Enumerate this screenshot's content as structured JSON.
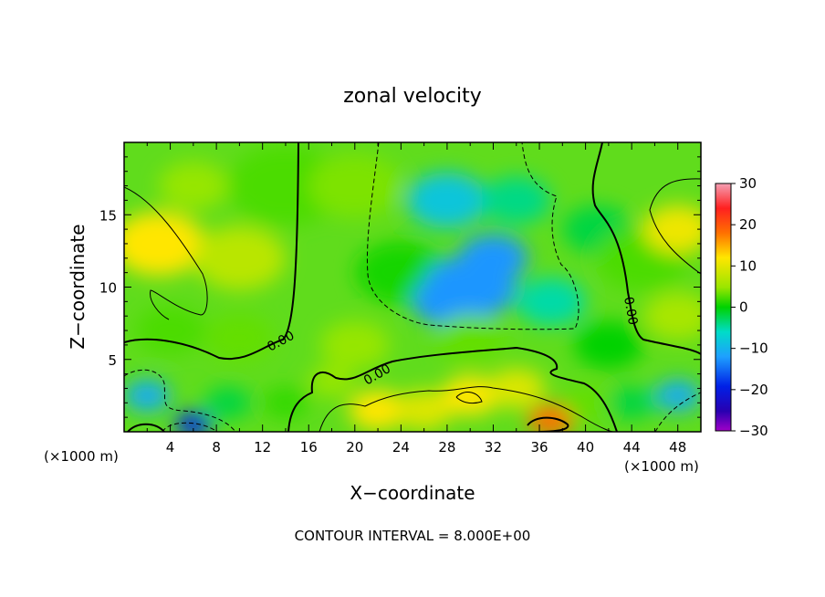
{
  "chart_data": {
    "type": "heatmap",
    "title": "zonal velocity",
    "xlabel": "X−coordinate",
    "ylabel": "Z−coordinate",
    "x_unit_label": "(×1000 m)",
    "z_unit_label": "(×1000 m)",
    "footer": "CONTOUR INTERVAL = 8.000E+00",
    "xlim": [
      0,
      50
    ],
    "ylim": [
      0,
      20
    ],
    "x_ticks": [
      4,
      8,
      12,
      16,
      20,
      24,
      28,
      32,
      36,
      40,
      44,
      48
    ],
    "y_ticks": [
      5,
      10,
      15
    ],
    "contour_label": "0.00",
    "colorbar": {
      "range": [
        -30,
        30
      ],
      "ticks": [
        30,
        20,
        10,
        0,
        -10,
        -20,
        -30
      ],
      "tick_labels": [
        "30",
        "20",
        "10",
        "0",
        "−10",
        "−20",
        "−30"
      ]
    },
    "field_points": [
      {
        "x": 3,
        "z": 13,
        "v": 12,
        "r": 4
      },
      {
        "x": 6,
        "z": 17,
        "v": 6,
        "r": 3
      },
      {
        "x": 10,
        "z": 12,
        "v": 8,
        "r": 4
      },
      {
        "x": 14,
        "z": 17,
        "v": 3,
        "r": 5
      },
      {
        "x": 20,
        "z": 17,
        "v": 5,
        "r": 4
      },
      {
        "x": 24,
        "z": 11,
        "v": 1,
        "r": 4
      },
      {
        "x": 28,
        "z": 16,
        "v": -8,
        "r": 3.5
      },
      {
        "x": 30,
        "z": 10,
        "v": -12,
        "r": 4
      },
      {
        "x": 28,
        "z": 9,
        "v": -12,
        "r": 3
      },
      {
        "x": 32,
        "z": 12,
        "v": -12,
        "r": 3
      },
      {
        "x": 34,
        "z": 16,
        "v": -4,
        "r": 3
      },
      {
        "x": 37,
        "z": 9,
        "v": -5,
        "r": 3
      },
      {
        "x": 41,
        "z": 14,
        "v": -2,
        "r": 3
      },
      {
        "x": 45,
        "z": 12,
        "v": 3,
        "r": 4
      },
      {
        "x": 48,
        "z": 14,
        "v": 11,
        "r": 3
      },
      {
        "x": 48,
        "z": 8,
        "v": 7,
        "r": 3
      },
      {
        "x": 4,
        "z": 7,
        "v": 3,
        "r": 3
      },
      {
        "x": 10,
        "z": 6.5,
        "v": 4,
        "r": 3
      },
      {
        "x": 20,
        "z": 6,
        "v": 6,
        "r": 3
      },
      {
        "x": 30,
        "z": 6.5,
        "v": 4,
        "r": 3
      },
      {
        "x": 42,
        "z": 6,
        "v": 0,
        "r": 3
      },
      {
        "x": 2,
        "z": 2.5,
        "v": -10,
        "r": 2
      },
      {
        "x": 6,
        "z": 0.5,
        "v": -18,
        "r": 1.6
      },
      {
        "x": 9,
        "z": 2,
        "v": -2,
        "r": 2
      },
      {
        "x": 14,
        "z": 2,
        "v": 2,
        "r": 2
      },
      {
        "x": 22,
        "z": 1.5,
        "v": 12,
        "r": 2.5
      },
      {
        "x": 26,
        "z": 1.5,
        "v": 10,
        "r": 2.5
      },
      {
        "x": 30,
        "z": 2.5,
        "v": 12,
        "r": 2.5
      },
      {
        "x": 34,
        "z": 3,
        "v": 10,
        "r": 2.5
      },
      {
        "x": 37,
        "z": 0.8,
        "v": 18,
        "r": 2
      },
      {
        "x": 40,
        "z": 2,
        "v": 4,
        "r": 2
      },
      {
        "x": 44,
        "z": 2,
        "v": -2,
        "r": 2
      },
      {
        "x": 48,
        "z": 2.5,
        "v": -10,
        "r": 2
      },
      {
        "x": 18,
        "z": 3.5,
        "v": 6,
        "r": 2
      }
    ]
  }
}
